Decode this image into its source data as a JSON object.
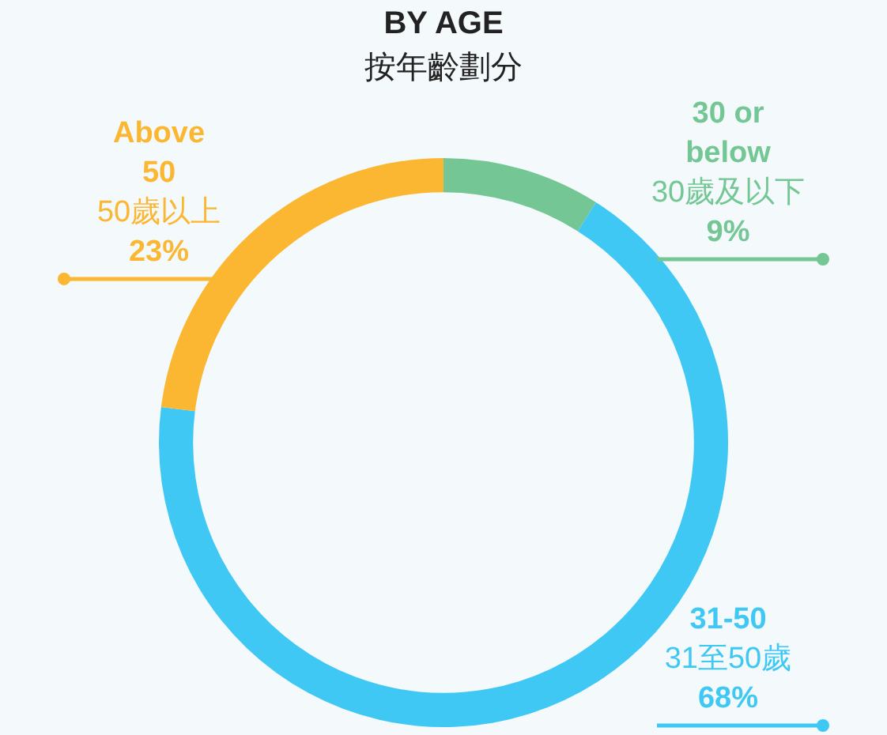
{
  "chart_data": {
    "type": "donut",
    "title": "BY AGE",
    "subtitle": "按年齡劃分",
    "categories": [
      "30 or below\n30歲及以下",
      "31-50\n31至50歲",
      "Above 50\n50歲以上"
    ],
    "values": [
      9,
      68,
      23
    ],
    "colors": [
      "#74c795",
      "#40c8f4",
      "#fbb731"
    ],
    "value_labels": [
      "9%",
      "68%",
      "23%"
    ],
    "legend": false
  }
}
